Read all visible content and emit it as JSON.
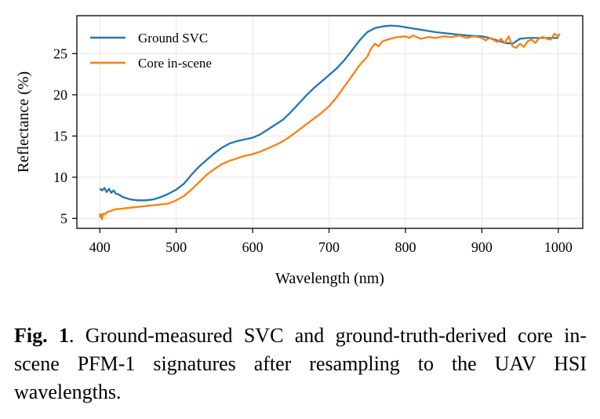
{
  "chart_data": {
    "type": "line",
    "title": "",
    "xlabel": "Wavelength (nm)",
    "ylabel": "Reflectance (%)",
    "xlim": [
      370,
      1032
    ],
    "ylim": [
      3.8,
      29.6
    ],
    "xticks": [
      400,
      500,
      600,
      700,
      800,
      900,
      1000
    ],
    "yticks": [
      5,
      10,
      15,
      20,
      25
    ],
    "grid": true,
    "legend": "top-left",
    "series": [
      {
        "name": "Ground SVC",
        "color": "#1f77b4",
        "x": [
          400,
          403,
          406,
          409,
          412,
          415,
          418,
          421,
          425,
          430,
          440,
          450,
          460,
          470,
          480,
          490,
          500,
          510,
          520,
          530,
          540,
          550,
          560,
          570,
          580,
          590,
          600,
          610,
          620,
          630,
          640,
          650,
          660,
          670,
          680,
          690,
          700,
          710,
          720,
          730,
          740,
          750,
          760,
          770,
          780,
          790,
          800,
          820,
          840,
          860,
          880,
          900,
          910,
          920,
          930,
          940,
          950,
          960,
          970,
          980,
          990,
          1000
        ],
        "y": [
          8.6,
          8.4,
          8.7,
          8.2,
          8.6,
          8.1,
          8.4,
          8.0,
          7.9,
          7.6,
          7.3,
          7.2,
          7.2,
          7.3,
          7.6,
          8.0,
          8.5,
          9.2,
          10.3,
          11.3,
          12.1,
          12.9,
          13.6,
          14.1,
          14.4,
          14.6,
          14.8,
          15.2,
          15.8,
          16.4,
          17.0,
          17.9,
          18.9,
          19.9,
          20.8,
          21.6,
          22.4,
          23.2,
          24.2,
          25.4,
          26.6,
          27.6,
          28.1,
          28.3,
          28.4,
          28.35,
          28.2,
          27.9,
          27.6,
          27.4,
          27.2,
          27.1,
          26.9,
          26.6,
          26.3,
          26.2,
          26.8,
          26.9,
          26.9,
          26.9,
          26.9,
          26.9
        ]
      },
      {
        "name": "Core in-scene",
        "color": "#ff7f0e",
        "x": [
          400,
          401,
          402,
          403,
          404,
          405,
          407,
          410,
          415,
          420,
          430,
          440,
          450,
          460,
          470,
          480,
          490,
          500,
          510,
          520,
          530,
          540,
          550,
          560,
          570,
          580,
          590,
          600,
          610,
          620,
          630,
          640,
          650,
          660,
          670,
          680,
          690,
          700,
          710,
          720,
          730,
          740,
          750,
          755,
          760,
          765,
          770,
          780,
          790,
          800,
          805,
          810,
          820,
          830,
          840,
          850,
          860,
          870,
          880,
          890,
          900,
          905,
          910,
          915,
          920,
          925,
          930,
          935,
          940,
          945,
          950,
          955,
          960,
          965,
          970,
          975,
          980,
          985,
          990,
          995,
          1000,
          1002
        ],
        "y": [
          5.6,
          5.1,
          5.5,
          4.9,
          5.4,
          5.6,
          5.5,
          5.8,
          5.9,
          6.1,
          6.2,
          6.3,
          6.4,
          6.5,
          6.6,
          6.7,
          6.8,
          7.2,
          7.7,
          8.5,
          9.4,
          10.3,
          11.0,
          11.6,
          12.0,
          12.3,
          12.6,
          12.8,
          13.1,
          13.5,
          13.9,
          14.4,
          15.0,
          15.7,
          16.4,
          17.1,
          17.8,
          18.6,
          19.7,
          21.0,
          22.3,
          23.6,
          24.6,
          25.6,
          26.2,
          25.9,
          26.5,
          26.8,
          27.0,
          27.1,
          26.9,
          27.2,
          26.8,
          27.0,
          26.9,
          27.1,
          27.0,
          27.2,
          26.9,
          27.1,
          26.9,
          26.6,
          26.9,
          26.7,
          26.4,
          26.8,
          26.3,
          27.1,
          25.9,
          25.7,
          26.2,
          25.8,
          26.5,
          26.7,
          26.3,
          26.9,
          27.0,
          26.8,
          26.7,
          27.4,
          27.1,
          27.4
        ]
      }
    ]
  },
  "caption": {
    "label": "Fig. 1",
    "text": ". Ground-measured SVC and ground-truth-derived core in-scene PFM-1 signatures after resampling to the UAV HSI wavelengths."
  }
}
